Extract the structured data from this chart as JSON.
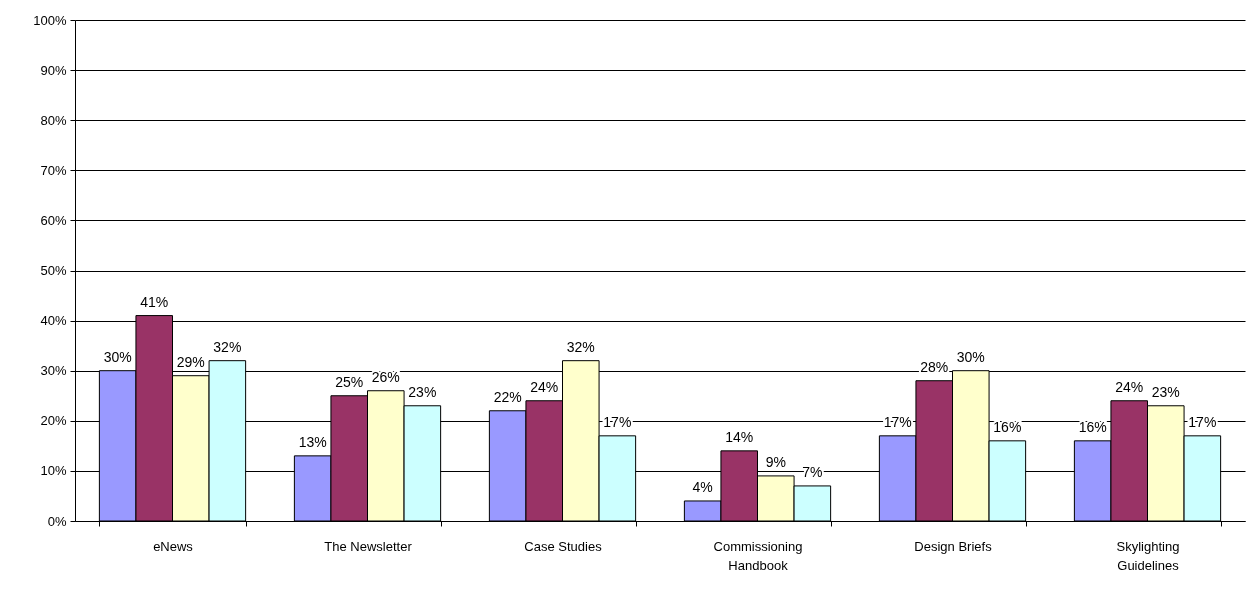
{
  "chart_data": {
    "type": "bar",
    "categories": [
      "eNews",
      "The Newsletter",
      "Case Studies",
      "Commissioning Handbook",
      "Design Briefs",
      "Skylighting Guidelines"
    ],
    "series": [
      {
        "color": "#9999ff",
        "values": [
          30,
          13,
          22,
          4,
          17,
          16
        ],
        "value_labels": [
          "30%",
          "13%",
          "22%",
          "4%",
          "17%",
          "16%"
        ]
      },
      {
        "color": "#993366",
        "values": [
          41,
          25,
          24,
          14,
          28,
          24
        ],
        "value_labels": [
          "41%",
          "25%",
          "24%",
          "14%",
          "28%",
          "24%"
        ]
      },
      {
        "color": "#ffffcc",
        "values": [
          29,
          26,
          32,
          9,
          30,
          23
        ],
        "value_labels": [
          "29%",
          "26%",
          "32%",
          "9%",
          "30%",
          "23%"
        ]
      },
      {
        "color": "#ccffff",
        "values": [
          32,
          23,
          17,
          7,
          16,
          17
        ],
        "value_labels": [
          "32%",
          "23%",
          "17%",
          "7%",
          "16%",
          "17%"
        ]
      }
    ],
    "ylim": [
      0,
      100
    ],
    "yticks": [
      {
        "value": 0,
        "label": "0%"
      },
      {
        "value": 10,
        "label": "10%"
      },
      {
        "value": 20,
        "label": "20%"
      },
      {
        "value": 30,
        "label": "30%"
      },
      {
        "value": 40,
        "label": "40%"
      },
      {
        "value": 50,
        "label": "50%"
      },
      {
        "value": 60,
        "label": "60%"
      },
      {
        "value": 70,
        "label": "70%"
      },
      {
        "value": 80,
        "label": "80%"
      },
      {
        "value": 90,
        "label": "90%"
      },
      {
        "value": 100,
        "label": "100%"
      }
    ],
    "grid": "y"
  }
}
